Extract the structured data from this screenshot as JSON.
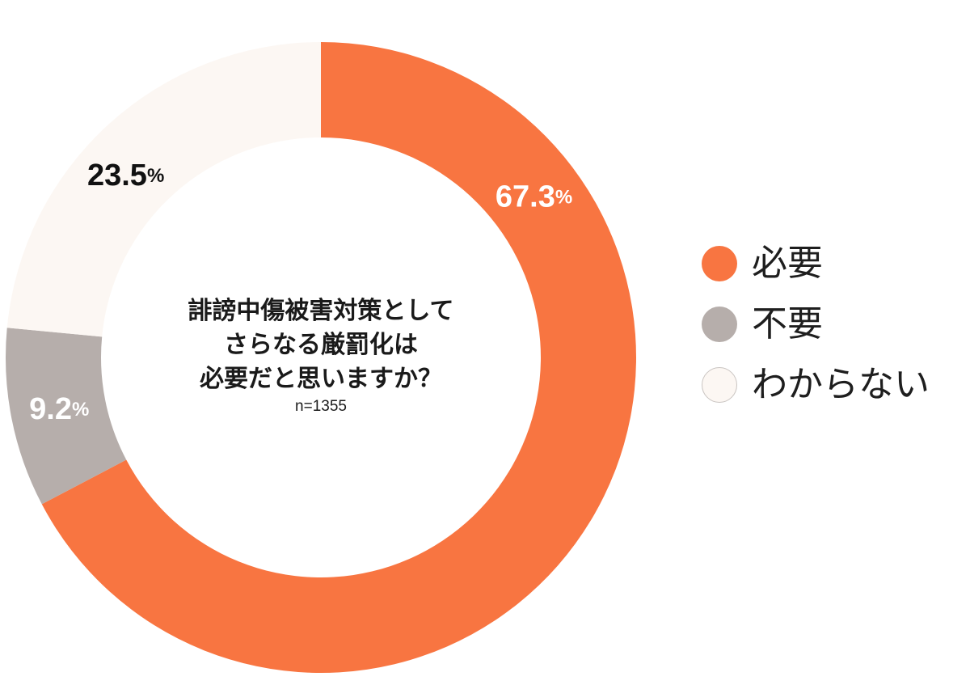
{
  "chart_data": {
    "type": "pie",
    "donut": true,
    "title_lines": [
      "誹謗中傷被害対策として",
      "さらなる厳罰化は",
      "必要だと思いますか？"
    ],
    "sample_size": "n=1355",
    "unit": "%",
    "legend": "right",
    "slices": [
      {
        "label": "必要",
        "value": 67.3,
        "color": "#F87541"
      },
      {
        "label": "不要",
        "value": 9.2,
        "color": "#B6AEAB"
      },
      {
        "label": "わからない",
        "value": 23.5,
        "color": "#FCF7F3"
      }
    ]
  }
}
